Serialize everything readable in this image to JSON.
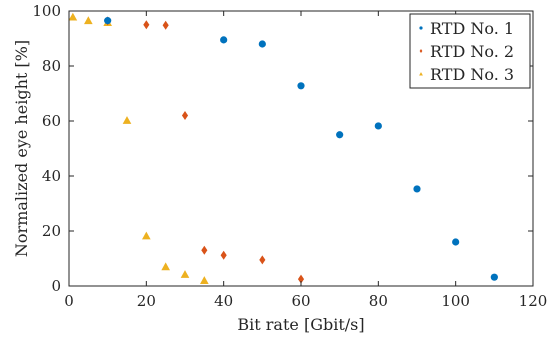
{
  "chart_data": {
    "type": "scatter",
    "xlabel": "Bit rate [Gbit/s]",
    "ylabel": "Normalized eye height [%]",
    "xlim": [
      0,
      120
    ],
    "ylim": [
      0,
      100
    ],
    "xticks": [
      0,
      20,
      40,
      60,
      80,
      100,
      120
    ],
    "yticks": [
      0,
      20,
      40,
      60,
      80,
      100
    ],
    "grid": false,
    "legend_position": "top-right",
    "series": [
      {
        "name": "RTD No. 1",
        "marker": "circle",
        "color": "#0072BD",
        "points": [
          [
            10,
            96.5
          ],
          [
            40,
            89.5
          ],
          [
            50,
            88
          ],
          [
            60,
            72.8
          ],
          [
            70,
            55
          ],
          [
            80,
            58.2
          ],
          [
            90,
            35.3
          ],
          [
            100,
            16
          ],
          [
            110,
            3.2
          ]
        ]
      },
      {
        "name": "RTD No. 2",
        "marker": "diamond",
        "color": "#D95319",
        "points": [
          [
            10,
            96.4
          ],
          [
            20,
            95
          ],
          [
            25,
            94.8
          ],
          [
            30,
            62
          ],
          [
            35,
            13
          ],
          [
            40,
            11.2
          ],
          [
            50,
            9.5
          ],
          [
            60,
            2.5
          ]
        ]
      },
      {
        "name": "RTD No. 3",
        "marker": "triangle",
        "color": "#EDB120",
        "points": [
          [
            1,
            97.8
          ],
          [
            5,
            96.5
          ],
          [
            10,
            95.8
          ],
          [
            15,
            60.2
          ],
          [
            20,
            18.2
          ],
          [
            25,
            7
          ],
          [
            30,
            4.2
          ],
          [
            35,
            2
          ]
        ]
      }
    ]
  }
}
